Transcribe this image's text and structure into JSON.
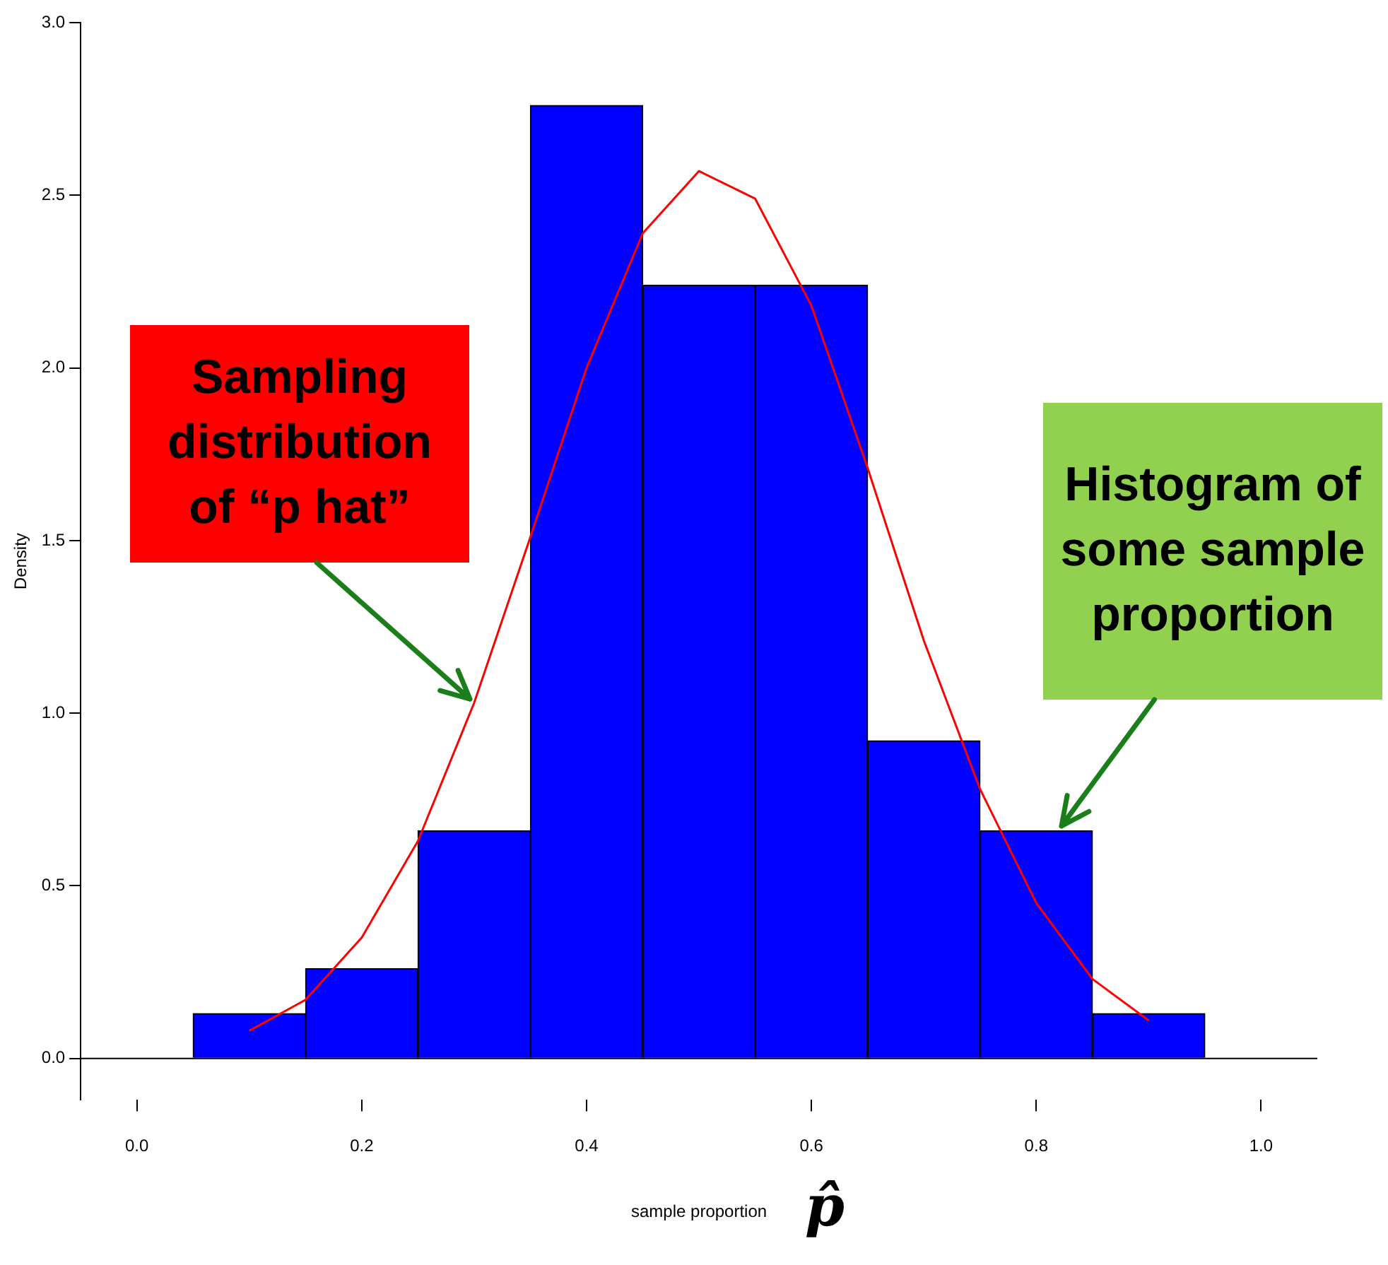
{
  "chart_data": {
    "type": "histogram",
    "xlabel": "sample proportion",
    "ylabel": "Density",
    "bins": [
      0.05,
      0.15,
      0.25,
      0.35,
      0.45,
      0.55,
      0.65,
      0.75,
      0.85,
      0.95
    ],
    "series": [
      {
        "type": "histogram",
        "color": "#0000ff",
        "values": [
          0.13,
          0.26,
          0.66,
          2.76,
          2.24,
          2.24,
          0.92,
          0.66,
          0.13
        ]
      },
      {
        "type": "line",
        "color": "#ff0000",
        "x": [
          0.1,
          0.15,
          0.2,
          0.25,
          0.3,
          0.35,
          0.4,
          0.45,
          0.5,
          0.55,
          0.6,
          0.65,
          0.7,
          0.75,
          0.8,
          0.85,
          0.9
        ],
        "values": [
          0.08,
          0.17,
          0.35,
          0.63,
          1.03,
          1.51,
          2.0,
          2.39,
          2.57,
          2.49,
          2.18,
          1.71,
          1.21,
          0.78,
          0.45,
          0.23,
          0.11
        ]
      }
    ],
    "xlim": [
      -0.05,
      1.05
    ],
    "xticks": [
      {
        "value": 0,
        "label": "0.0"
      },
      {
        "value": 0.2,
        "label": "0.2"
      },
      {
        "value": 0.4,
        "label": "0.4"
      },
      {
        "value": 0.6,
        "label": "0.6"
      },
      {
        "value": 0.8,
        "label": "0.8"
      },
      {
        "value": 1,
        "label": "1.0"
      }
    ],
    "ylim": [
      -0.12,
      3
    ],
    "yticks": [
      {
        "value": 0,
        "label": "0.0"
      },
      {
        "value": 0.5,
        "label": "0.5"
      },
      {
        "value": 1,
        "label": "1.0"
      },
      {
        "value": 1.5,
        "label": "1.5"
      },
      {
        "value": 2,
        "label": "2.0"
      },
      {
        "value": 2.5,
        "label": "2.5"
      },
      {
        "value": 3,
        "label": "3.0"
      }
    ],
    "ref_lines": [
      {
        "axis": "y",
        "value": 0
      }
    ],
    "marker": "none",
    "grid": false,
    "legend": false,
    "annotations": [
      {
        "text": "Sampling distribution of “p hat”",
        "x": 0.3,
        "y": 1.03
      },
      {
        "text": "Histogram of some sample proportion",
        "x": 0.82,
        "y": 0.66
      },
      "p̂"
    ]
  }
}
